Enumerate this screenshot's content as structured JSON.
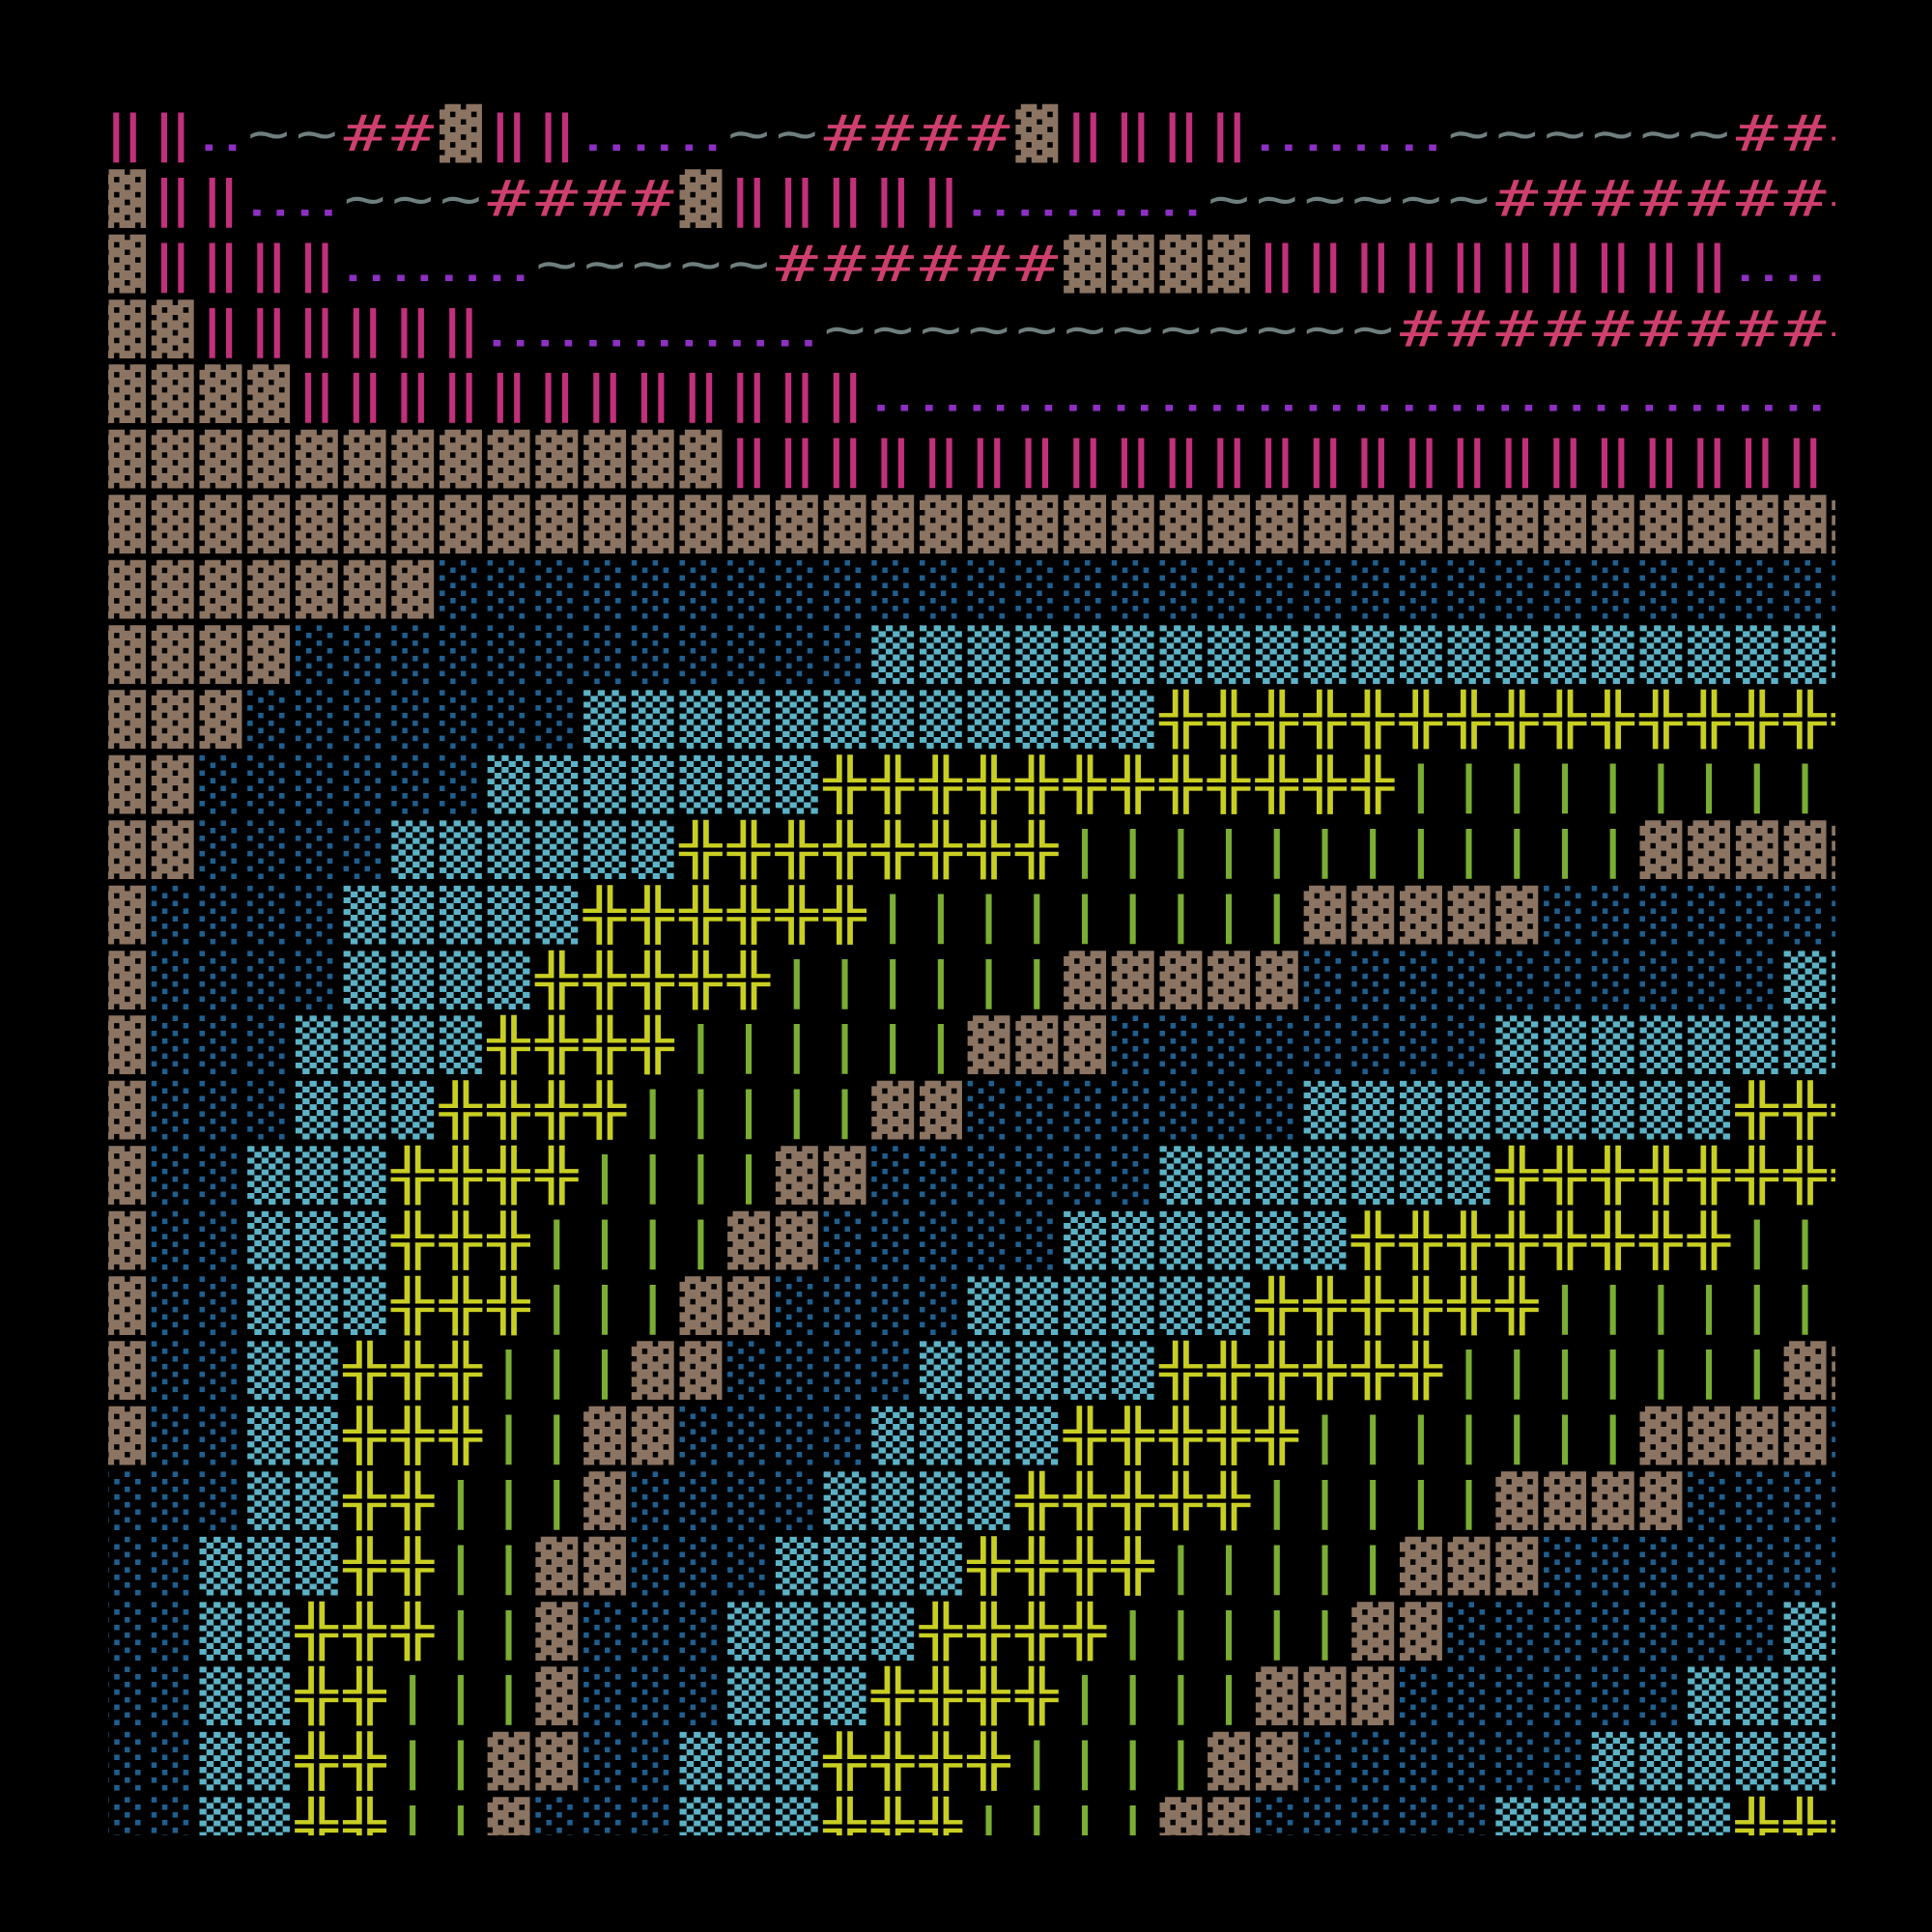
{
  "map": {
    "colors": {
      "▓": "#8c7462",
      "‖": "#c2307c",
      "‥": "#8e2fc4",
      "~": "#6f7f7f",
      "#": "#cf3f6e",
      "░": "#1f5f8f",
      "▒": "#5cb2c6",
      "╬": "#c9cf22",
      "|": "#78ae33"
    },
    "rows": [
      [
        "‖",
        "‖",
        "‥",
        "~",
        "~",
        "#",
        "#",
        "▓",
        "‖",
        "‖",
        "‥",
        "‥",
        "‥",
        "~",
        "~",
        "#",
        "#",
        "#",
        "#",
        "▓",
        "‖",
        "‖",
        "‖",
        "‖",
        "‥",
        "‥",
        "‥",
        "‥",
        "~",
        "~",
        "~",
        "~",
        "~",
        "~",
        "#",
        "#",
        "#"
      ],
      [
        "▓",
        "‖",
        "‖",
        "‥",
        "‥",
        "~",
        "~",
        "~",
        "#",
        "#",
        "#",
        "#",
        "▓",
        "‖",
        "‖",
        "‖",
        "‖",
        "‖",
        "‥",
        "‥",
        "‥",
        "‥",
        "‥",
        "~",
        "~",
        "~",
        "~",
        "~",
        "~",
        "#",
        "#",
        "#",
        "#",
        "#",
        "#",
        "#",
        "#"
      ],
      [
        "▓",
        "‖",
        "‖",
        "‖",
        "‖",
        "‥",
        "‥",
        "‥",
        "‥",
        "~",
        "~",
        "~",
        "~",
        "~",
        "#",
        "#",
        "#",
        "#",
        "#",
        "#",
        "▓",
        "▓",
        "▓",
        "▓",
        "‖",
        "‖",
        "‖",
        "‖",
        "‖",
        "‖",
        "‖",
        "‖",
        "‖",
        "‖",
        "‥",
        "‥",
        "‥"
      ],
      [
        "▓",
        "▓",
        "‖",
        "‖",
        "‖",
        "‖",
        "‖",
        "‖",
        "‥",
        "‥",
        "‥",
        "‥",
        "‥",
        "‥",
        "‥",
        "~",
        "~",
        "~",
        "~",
        "~",
        "~",
        "~",
        "~",
        "~",
        "~",
        "~",
        "~",
        "#",
        "#",
        "#",
        "#",
        "#",
        "#",
        "#",
        "#",
        "#",
        "#"
      ],
      [
        "▓",
        "▓",
        "▓",
        "▓",
        "‖",
        "‖",
        "‖",
        "‖",
        "‖",
        "‖",
        "‖",
        "‖",
        "‖",
        "‖",
        "‖",
        "‖",
        "‥",
        "‥",
        "‥",
        "‥",
        "‥",
        "‥",
        "‥",
        "‥",
        "‥",
        "‥",
        "‥",
        "‥",
        "‥",
        "‥",
        "‥",
        "‥",
        "‥",
        "‥",
        "‥",
        "‥",
        "‥"
      ],
      [
        "▓",
        "▓",
        "▓",
        "▓",
        "▓",
        "▓",
        "▓",
        "▓",
        "▓",
        "▓",
        "▓",
        "▓",
        "▓",
        "‖",
        "‖",
        "‖",
        "‖",
        "‖",
        "‖",
        "‖",
        "‖",
        "‖",
        "‖",
        "‖",
        "‖",
        "‖",
        "‖",
        "‖",
        "‖",
        "‖",
        "‖",
        "‖",
        "‖",
        "‖",
        "‖",
        "‖",
        " "
      ],
      [
        "▓",
        "▓",
        "▓",
        "▓",
        "▓",
        "▓",
        "▓",
        "▓",
        "▓",
        "▓",
        "▓",
        "▓",
        "▓",
        "▓",
        "▓",
        "▓",
        "▓",
        "▓",
        "▓",
        "▓",
        "▓",
        "▓",
        "▓",
        "▓",
        "▓",
        "▓",
        "▓",
        "▓",
        "▓",
        "▓",
        "▓",
        "▓",
        "▓",
        "▓",
        "▓",
        "▓",
        "▓"
      ],
      [
        "▓",
        "▓",
        "▓",
        "▓",
        "▓",
        "▓",
        "▓",
        "░",
        "░",
        "░",
        "░",
        "░",
        "░",
        "░",
        "░",
        "░",
        "░",
        "░",
        "░",
        "░",
        "░",
        "░",
        "░",
        "░",
        "░",
        "░",
        "░",
        "░",
        "░",
        "░",
        "░",
        "░",
        "░",
        "░",
        "░",
        "░",
        "░"
      ],
      [
        "▓",
        "▓",
        "▓",
        "▓",
        "░",
        "░",
        "░",
        "░",
        "░",
        "░",
        "░",
        "░",
        "░",
        "░",
        "░",
        "░",
        "▒",
        "▒",
        "▒",
        "▒",
        "▒",
        "▒",
        "▒",
        "▒",
        "▒",
        "▒",
        "▒",
        "▒",
        "▒",
        "▒",
        "▒",
        "▒",
        "▒",
        "▒",
        "▒",
        "▒",
        "▒"
      ],
      [
        "▓",
        "▓",
        "▓",
        "░",
        "░",
        "░",
        "░",
        "░",
        "░",
        "░",
        "▒",
        "▒",
        "▒",
        "▒",
        "▒",
        "▒",
        "▒",
        "▒",
        "▒",
        "▒",
        "▒",
        "▒",
        "╬",
        "╬",
        "╬",
        "╬",
        "╬",
        "╬",
        "╬",
        "╬",
        "╬",
        "╬",
        "╬",
        "╬",
        "╬",
        "╬",
        "╬"
      ],
      [
        "▓",
        "▓",
        "░",
        "░",
        "░",
        "░",
        "░",
        "░",
        "▒",
        "▒",
        "▒",
        "▒",
        "▒",
        "▒",
        "▒",
        "╬",
        "╬",
        "╬",
        "╬",
        "╬",
        "╬",
        "╬",
        "╬",
        "╬",
        "╬",
        "╬",
        "╬",
        "|",
        "|",
        "|",
        "|",
        "|",
        "|",
        "|",
        "|",
        "|",
        "|"
      ],
      [
        "▓",
        "▓",
        "░",
        "░",
        "░",
        "░",
        "▒",
        "▒",
        "▒",
        "▒",
        "▒",
        "▒",
        "╬",
        "╬",
        "╬",
        "╬",
        "╬",
        "╬",
        "╬",
        "╬",
        "|",
        "|",
        "|",
        "|",
        "|",
        "|",
        "|",
        "|",
        "|",
        "|",
        "|",
        "|",
        "▓",
        "▓",
        "▓",
        "▓",
        "▓"
      ],
      [
        "▓",
        "░",
        "░",
        "░",
        "░",
        "▒",
        "▒",
        "▒",
        "▒",
        "▒",
        "╬",
        "╬",
        "╬",
        "╬",
        "╬",
        "╬",
        "|",
        "|",
        "|",
        "|",
        "|",
        "|",
        "|",
        "|",
        "|",
        "▓",
        "▓",
        "▓",
        "▓",
        "▓",
        "░",
        "░",
        "░",
        "░",
        "░",
        "░",
        "░"
      ],
      [
        "▓",
        "░",
        "░",
        "░",
        "░",
        "▒",
        "▒",
        "▒",
        "▒",
        "╬",
        "╬",
        "╬",
        "╬",
        "╬",
        "|",
        "|",
        "|",
        "|",
        "|",
        "|",
        "▓",
        "▓",
        "▓",
        "▓",
        "▓",
        "░",
        "░",
        "░",
        "░",
        "░",
        "░",
        "░",
        "░",
        "░",
        "░",
        "▒",
        "▒"
      ],
      [
        "▓",
        "░",
        "░",
        "░",
        "▒",
        "▒",
        "▒",
        "▒",
        "╬",
        "╬",
        "╬",
        "╬",
        "|",
        "|",
        "|",
        "|",
        "|",
        "|",
        "▓",
        "▓",
        "▓",
        "░",
        "░",
        "░",
        "░",
        "░",
        "░",
        "░",
        "░",
        "▒",
        "▒",
        "▒",
        "▒",
        "▒",
        "▒",
        "▒",
        "▒"
      ],
      [
        "▓",
        "░",
        "░",
        "░",
        "▒",
        "▒",
        "▒",
        "╬",
        "╬",
        "╬",
        "╬",
        "|",
        "|",
        "|",
        "|",
        "|",
        "▓",
        "▓",
        "░",
        "░",
        "░",
        "░",
        "░",
        "░",
        "░",
        "▒",
        "▒",
        "▒",
        "▒",
        "▒",
        "▒",
        "▒",
        "▒",
        "▒",
        "╬",
        "╬",
        "╬"
      ],
      [
        "▓",
        "░",
        "░",
        "▒",
        "▒",
        "▒",
        "╬",
        "╬",
        "╬",
        "╬",
        "|",
        "|",
        "|",
        "|",
        "▓",
        "▓",
        "░",
        "░",
        "░",
        "░",
        "░",
        "░",
        "▒",
        "▒",
        "▒",
        "▒",
        "▒",
        "▒",
        "▒",
        "╬",
        "╬",
        "╬",
        "╬",
        "╬",
        "╬",
        "╬",
        "╬"
      ],
      [
        "▓",
        "░",
        "░",
        "▒",
        "▒",
        "▒",
        "╬",
        "╬",
        "╬",
        "|",
        "|",
        "|",
        "|",
        "▓",
        "▓",
        "░",
        "░",
        "░",
        "░",
        "░",
        "▒",
        "▒",
        "▒",
        "▒",
        "▒",
        "▒",
        "╬",
        "╬",
        "╬",
        "╬",
        "╬",
        "╬",
        "╬",
        "╬",
        "|",
        "|",
        "|"
      ],
      [
        "▓",
        "░",
        "░",
        "▒",
        "▒",
        "▒",
        "╬",
        "╬",
        "╬",
        "|",
        "|",
        "|",
        "▓",
        "▓",
        "░",
        "░",
        "░",
        "░",
        "▒",
        "▒",
        "▒",
        "▒",
        "▒",
        "▒",
        "╬",
        "╬",
        "╬",
        "╬",
        "╬",
        "╬",
        "|",
        "|",
        "|",
        "|",
        "|",
        "|",
        "|"
      ],
      [
        "▓",
        "░",
        "░",
        "▒",
        "▒",
        "╬",
        "╬",
        "╬",
        "|",
        "|",
        "|",
        "▓",
        "▓",
        "░",
        "░",
        "░",
        "░",
        "▒",
        "▒",
        "▒",
        "▒",
        "▒",
        "╬",
        "╬",
        "╬",
        "╬",
        "╬",
        "╬",
        "|",
        "|",
        "|",
        "|",
        "|",
        "|",
        "|",
        "▓",
        "▓"
      ],
      [
        "▓",
        "░",
        "░",
        "▒",
        "▒",
        "╬",
        "╬",
        "╬",
        "|",
        "|",
        "▓",
        "▓",
        "░",
        "░",
        "░",
        "░",
        "▒",
        "▒",
        "▒",
        "▒",
        "╬",
        "╬",
        "╬",
        "╬",
        "╬",
        "|",
        "|",
        "|",
        "|",
        "|",
        "|",
        "|",
        "▓",
        "▓",
        "▓",
        "▓",
        "░"
      ],
      [
        "░",
        "░",
        "░",
        "▒",
        "▒",
        "╬",
        "╬",
        "|",
        "|",
        "|",
        "▓",
        "░",
        "░",
        "░",
        "░",
        "▒",
        "▒",
        "▒",
        "▒",
        "╬",
        "╬",
        "╬",
        "╬",
        "╬",
        "|",
        "|",
        "|",
        "|",
        "|",
        "▓",
        "▓",
        "▓",
        "▓",
        "░",
        "░",
        "░",
        "░"
      ],
      [
        "░",
        "░",
        "▒",
        "▒",
        "▒",
        "╬",
        "╬",
        "|",
        "|",
        "▓",
        "▓",
        "░",
        "░",
        "░",
        "▒",
        "▒",
        "▒",
        "▒",
        "╬",
        "╬",
        "╬",
        "╬",
        "|",
        "|",
        "|",
        "|",
        "|",
        "▓",
        "▓",
        "▓",
        "░",
        "░",
        "░",
        "░",
        "░",
        "░",
        "░"
      ],
      [
        "░",
        "░",
        "▒",
        "▒",
        "╬",
        "╬",
        "╬",
        "|",
        "|",
        "▓",
        "░",
        "░",
        "░",
        "▒",
        "▒",
        "▒",
        "▒",
        "╬",
        "╬",
        "╬",
        "╬",
        "|",
        "|",
        "|",
        "|",
        "|",
        "▓",
        "▓",
        "░",
        "░",
        "░",
        "░",
        "░",
        "░",
        "░",
        "▒",
        "▒"
      ],
      [
        "░",
        "░",
        "▒",
        "▒",
        "╬",
        "╬",
        "|",
        "|",
        "|",
        "▓",
        "░",
        "░",
        "░",
        "▒",
        "▒",
        "▒",
        "╬",
        "╬",
        "╬",
        "╬",
        "|",
        "|",
        "|",
        "|",
        "▓",
        "▓",
        "▓",
        "░",
        "░",
        "░",
        "░",
        "░",
        "░",
        "▒",
        "▒",
        "▒",
        "▒"
      ],
      [
        "░",
        "░",
        "▒",
        "▒",
        "╬",
        "╬",
        "|",
        "|",
        "▓",
        "▓",
        "░",
        "░",
        "▒",
        "▒",
        "▒",
        "╬",
        "╬",
        "╬",
        "╬",
        "|",
        "|",
        "|",
        "|",
        "▓",
        "▓",
        "░",
        "░",
        "░",
        "░",
        "░",
        "░",
        "▒",
        "▒",
        "▒",
        "▒",
        "▒",
        "▒"
      ],
      [
        "░",
        "░",
        "▒",
        "▒",
        "╬",
        "╬",
        "|",
        "|",
        "▓",
        "░",
        "░",
        "░",
        "▒",
        "▒",
        "▒",
        "╬",
        "╬",
        "╬",
        "|",
        "|",
        "|",
        "|",
        "▓",
        "▓",
        "░",
        "░",
        "░",
        "░",
        "░",
        "▒",
        "▒",
        "▒",
        "▒",
        "▒",
        "╬",
        "╬",
        "╬"
      ]
    ]
  }
}
